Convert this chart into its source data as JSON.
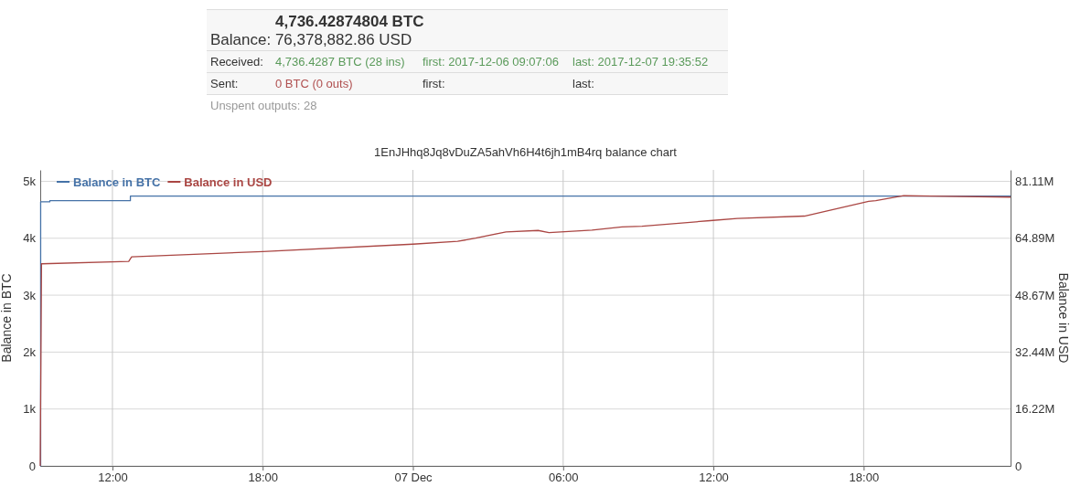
{
  "chart_data": {
    "type": "line",
    "title": "1EnJHhq8Jq8vDuZA5ahVh6H4t6jh1mB4rq balance chart",
    "ylabel": "Balance in BTC",
    "y2label": "Balance in USD",
    "annotations": [
      "4,736.42874804 BTC",
      "Balance: 76,378,882.86 USD",
      "Received:",
      "4,736.4287 BTC (28 ins)",
      "first: 2017-12-06 09:07:06",
      "last: 2017-12-07 19:35:52",
      "Sent:",
      "0 BTC (0 outs)",
      "first:",
      "last:",
      "Unspent outputs: 28"
    ],
    "xlim": [
      "2017-12-06T09:07",
      "2017-12-07T23:52"
    ],
    "xticks": [
      {
        "value": "2017-12-06T12:00",
        "label": "12:00"
      },
      {
        "value": "2017-12-06T18:00",
        "label": "18:00"
      },
      {
        "value": "2017-12-07T00:00",
        "label": "07 Dec"
      },
      {
        "value": "2017-12-07T06:00",
        "label": "06:00"
      },
      {
        "value": "2017-12-07T12:00",
        "label": "12:00"
      },
      {
        "value": "2017-12-07T18:00",
        "label": "18:00"
      }
    ],
    "ylim": [
      0,
      5200
    ],
    "yticks": [
      0,
      {
        "value": 1000,
        "label": "1k"
      },
      {
        "value": 2000,
        "label": "2k"
      },
      {
        "value": 3000,
        "label": "3k"
      },
      {
        "value": 4000,
        "label": "4k"
      },
      {
        "value": 5000,
        "label": "5k"
      }
    ],
    "y2lim": [
      0,
      84350000
    ],
    "y2ticks": [
      0,
      {
        "value": 16220000,
        "label": "16.22M"
      },
      {
        "value": 32440000,
        "label": "32.44M"
      },
      {
        "value": 48670000,
        "label": "48.67M"
      },
      {
        "value": 64890000,
        "label": "64.89M"
      },
      {
        "value": 81110000,
        "label": "81.11M"
      }
    ],
    "grid": true,
    "legend": "top left",
    "marker": "none",
    "series": [
      {
        "name": "Balance in BTC",
        "type": "step",
        "color": "#4572a7",
        "x": [
          "2017-12-06T09:07",
          "2017-12-06T09:08",
          "2017-12-06T09:30",
          "2017-12-06T12:43",
          "2017-12-07T23:52"
        ],
        "values": [
          0,
          4640,
          4660,
          4740,
          4740
        ]
      },
      {
        "name": "Balance in USD",
        "type": "line",
        "axis": "y2",
        "color": "#aa4643",
        "x": [
          "2017-12-06T09:07",
          "2017-12-06T09:10",
          "2017-12-06T12:39",
          "2017-12-06T12:46",
          "2017-12-06T18:00",
          "2017-12-07T00:00",
          "2017-12-07T01:47",
          "2017-12-07T02:30",
          "2017-12-07T03:43",
          "2017-12-07T05:00",
          "2017-12-07T05:26",
          "2017-12-07T07:09",
          "2017-12-07T08:21",
          "2017-12-07T09:09",
          "2017-12-07T11:52",
          "2017-12-07T12:57",
          "2017-12-07T15:38",
          "2017-12-07T18:12",
          "2017-12-07T18:29",
          "2017-12-07T19:36",
          "2017-12-07T23:52"
        ],
        "values": [
          0,
          57600000,
          58300000,
          59600000,
          61100000,
          63200000,
          64000000,
          64900000,
          66700000,
          67100000,
          66500000,
          67200000,
          68100000,
          68300000,
          69900000,
          70500000,
          71200000,
          75400000,
          75600000,
          77000000,
          76600000
        ]
      }
    ]
  }
}
